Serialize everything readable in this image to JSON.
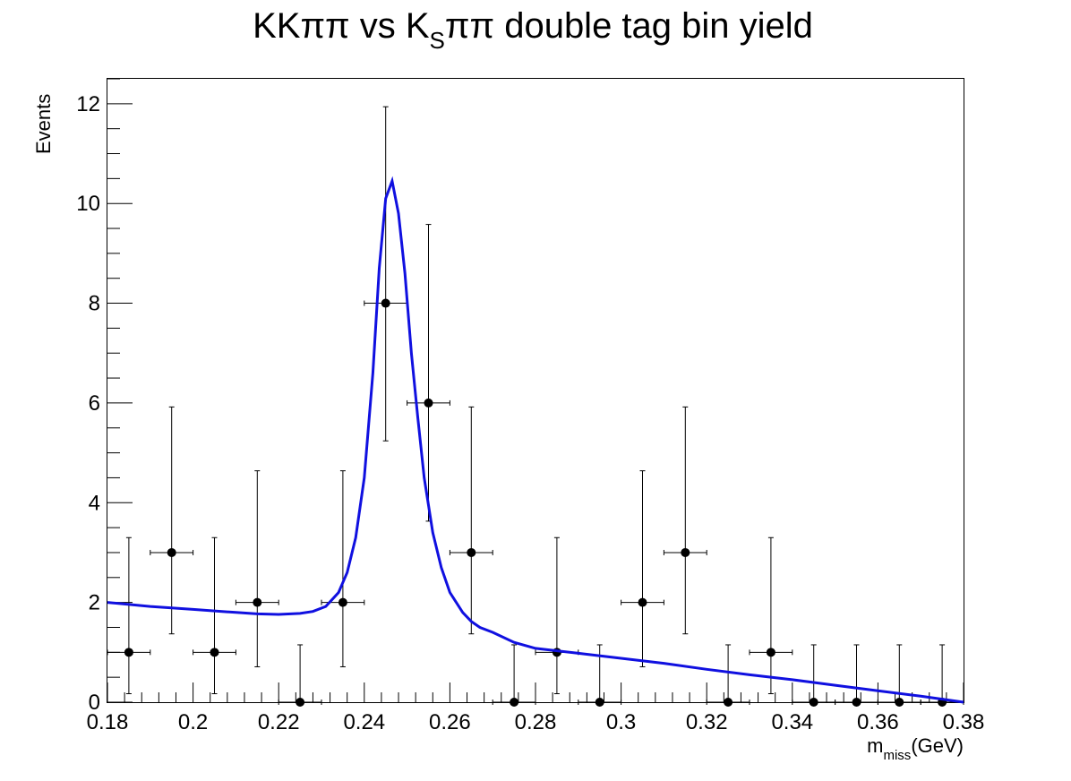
{
  "chart_data": {
    "type": "scatter",
    "title_parts": {
      "a": "KKππ vs K",
      "sub": "S",
      "b": "ππ double tag bin yield"
    },
    "xlabel_parts": {
      "main": "m",
      "sub": "miss",
      "unit": "(GeV)"
    },
    "ylabel": "Events",
    "xlim": [
      0.18,
      0.38
    ],
    "ylim": [
      0,
      12.5
    ],
    "x_ticks": [
      0.18,
      0.2,
      0.22,
      0.24,
      0.26,
      0.28,
      0.3,
      0.32,
      0.34,
      0.36,
      0.38
    ],
    "x_tick_labels": [
      "0.18",
      "0.2",
      "0.22",
      "0.24",
      "0.26",
      "0.28",
      "0.3",
      "0.32",
      "0.34",
      "0.36",
      "0.38"
    ],
    "y_ticks": [
      0,
      2,
      4,
      6,
      8,
      10,
      12
    ],
    "y_tick_labels": [
      "0",
      "2",
      "4",
      "6",
      "8",
      "10",
      "12"
    ],
    "bin_width": 0.01,
    "series": [
      {
        "kind": "data_points",
        "color": "#000000",
        "points": [
          {
            "x": 0.185,
            "y": 1,
            "yerr_low": 0.83,
            "yerr_high": 2.3
          },
          {
            "x": 0.195,
            "y": 3,
            "yerr_low": 1.63,
            "yerr_high": 2.92
          },
          {
            "x": 0.205,
            "y": 1,
            "yerr_low": 0.83,
            "yerr_high": 2.3
          },
          {
            "x": 0.215,
            "y": 2,
            "yerr_low": 1.29,
            "yerr_high": 2.64
          },
          {
            "x": 0.225,
            "y": 0,
            "yerr_low": 0,
            "yerr_high": 1.15
          },
          {
            "x": 0.235,
            "y": 2,
            "yerr_low": 1.29,
            "yerr_high": 2.64
          },
          {
            "x": 0.245,
            "y": 8,
            "yerr_low": 2.76,
            "yerr_high": 3.94
          },
          {
            "x": 0.255,
            "y": 6,
            "yerr_low": 2.37,
            "yerr_high": 3.58
          },
          {
            "x": 0.265,
            "y": 3,
            "yerr_low": 1.63,
            "yerr_high": 2.92
          },
          {
            "x": 0.275,
            "y": 0,
            "yerr_low": 0,
            "yerr_high": 1.15
          },
          {
            "x": 0.285,
            "y": 1,
            "yerr_low": 0.83,
            "yerr_high": 2.3
          },
          {
            "x": 0.295,
            "y": 0,
            "yerr_low": 0,
            "yerr_high": 1.15
          },
          {
            "x": 0.305,
            "y": 2,
            "yerr_low": 1.29,
            "yerr_high": 2.64
          },
          {
            "x": 0.315,
            "y": 3,
            "yerr_low": 1.63,
            "yerr_high": 2.92
          },
          {
            "x": 0.325,
            "y": 0,
            "yerr_low": 0,
            "yerr_high": 1.15
          },
          {
            "x": 0.335,
            "y": 1,
            "yerr_low": 0.83,
            "yerr_high": 2.3
          },
          {
            "x": 0.345,
            "y": 0,
            "yerr_low": 0,
            "yerr_high": 1.15
          },
          {
            "x": 0.355,
            "y": 0,
            "yerr_low": 0,
            "yerr_high": 1.15
          },
          {
            "x": 0.365,
            "y": 0,
            "yerr_low": 0,
            "yerr_high": 1.15
          },
          {
            "x": 0.375,
            "y": 0,
            "yerr_low": 0,
            "yerr_high": 1.15
          }
        ]
      },
      {
        "kind": "fit_curve",
        "color": "#1010e0",
        "points": [
          [
            0.18,
            2.0
          ],
          [
            0.19,
            1.92
          ],
          [
            0.2,
            1.86
          ],
          [
            0.21,
            1.8
          ],
          [
            0.215,
            1.77
          ],
          [
            0.22,
            1.76
          ],
          [
            0.225,
            1.78
          ],
          [
            0.228,
            1.82
          ],
          [
            0.231,
            1.92
          ],
          [
            0.234,
            2.2
          ],
          [
            0.236,
            2.6
          ],
          [
            0.238,
            3.3
          ],
          [
            0.24,
            4.5
          ],
          [
            0.242,
            6.6
          ],
          [
            0.2435,
            8.7
          ],
          [
            0.245,
            10.1
          ],
          [
            0.2465,
            10.45
          ],
          [
            0.248,
            9.8
          ],
          [
            0.2495,
            8.6
          ],
          [
            0.251,
            7.0
          ],
          [
            0.2525,
            5.7
          ],
          [
            0.254,
            4.5
          ],
          [
            0.256,
            3.4
          ],
          [
            0.258,
            2.7
          ],
          [
            0.26,
            2.2
          ],
          [
            0.263,
            1.8
          ],
          [
            0.265,
            1.62
          ],
          [
            0.267,
            1.5
          ],
          [
            0.27,
            1.4
          ],
          [
            0.275,
            1.2
          ],
          [
            0.28,
            1.08
          ],
          [
            0.29,
            0.98
          ],
          [
            0.3,
            0.88
          ],
          [
            0.31,
            0.78
          ],
          [
            0.32,
            0.66
          ],
          [
            0.33,
            0.55
          ],
          [
            0.34,
            0.45
          ],
          [
            0.35,
            0.34
          ],
          [
            0.36,
            0.23
          ],
          [
            0.37,
            0.12
          ],
          [
            0.38,
            0.0
          ]
        ]
      }
    ],
    "grid": false,
    "legend": "none"
  }
}
